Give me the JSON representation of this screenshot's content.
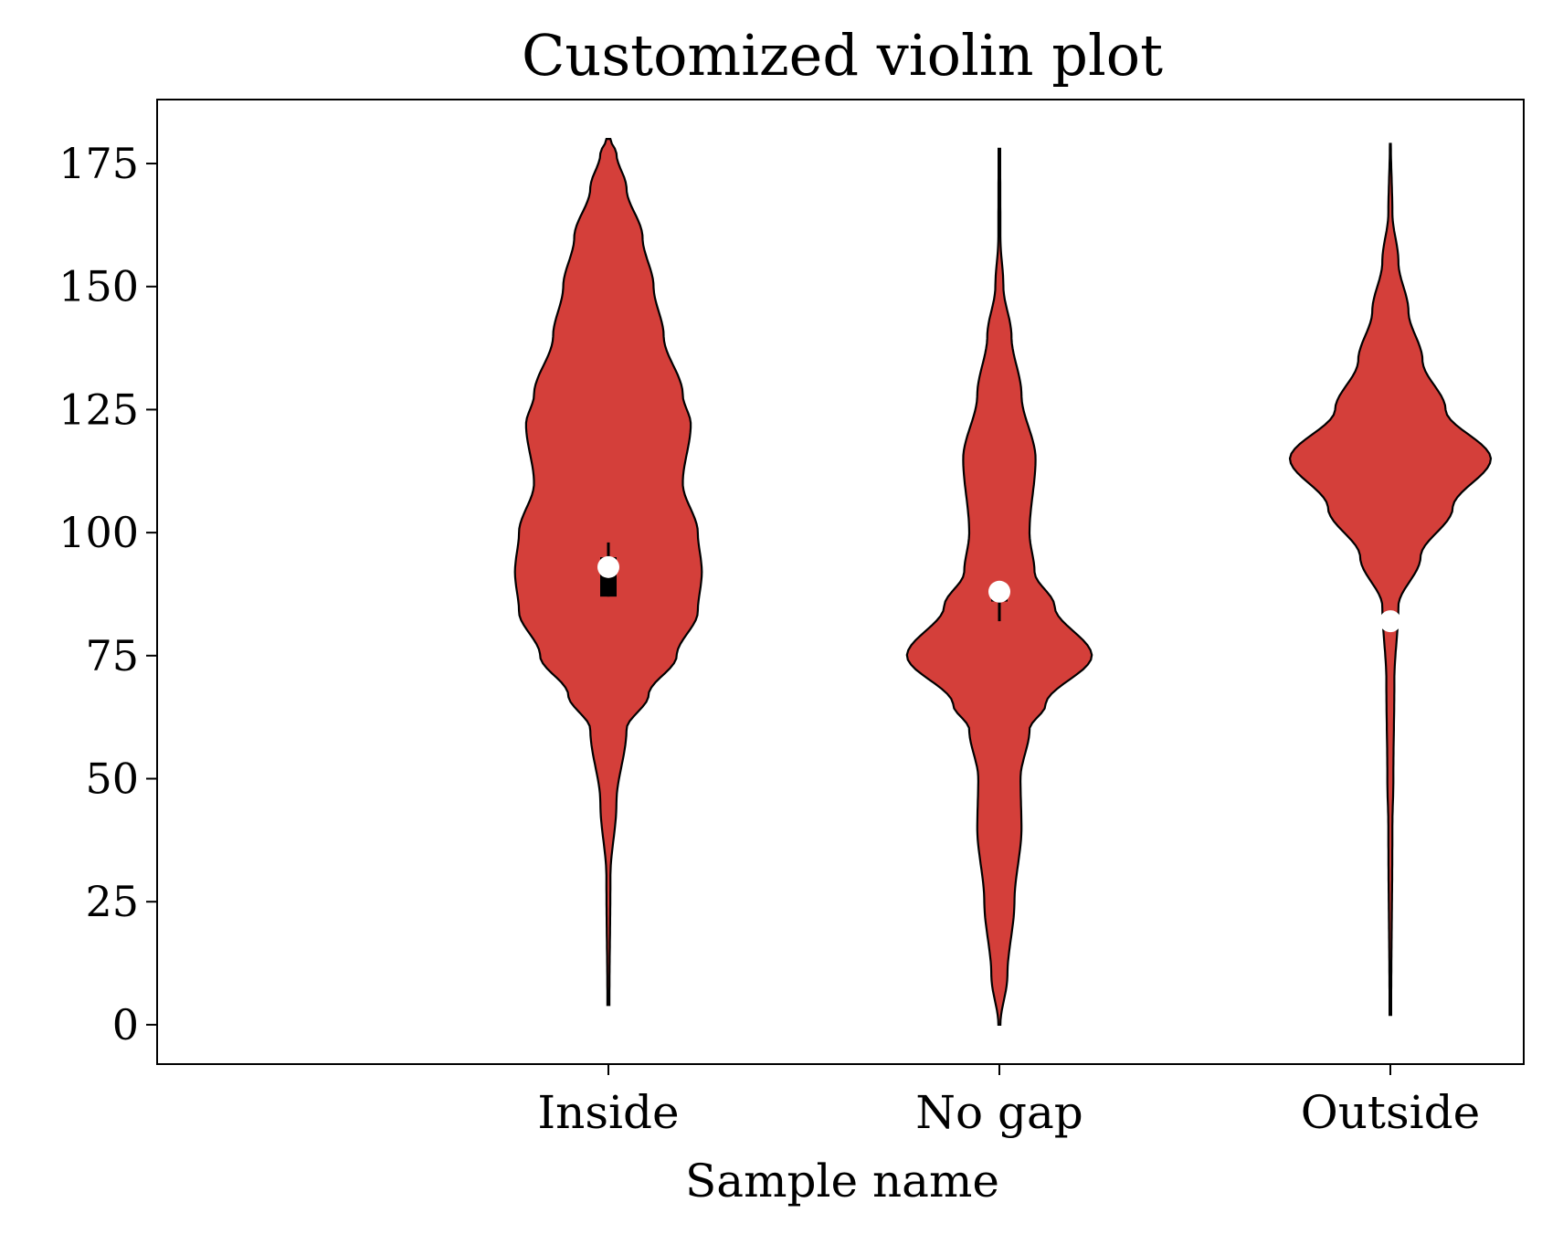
{
  "chart_data": {
    "type": "violin",
    "title": "Customized violin plot",
    "xlabel": "Sample name",
    "ylabel": "",
    "categories": [
      "Inside",
      "No gap",
      "Outside"
    ],
    "ylim": [
      -8,
      188
    ],
    "yticks": [
      0,
      25,
      50,
      75,
      100,
      125,
      150,
      175
    ],
    "ytick_labels": [
      "0",
      "25",
      "50",
      "75",
      "100",
      "125",
      "150",
      "175"
    ],
    "grid": false,
    "colors": {
      "fill": "#d43f3a",
      "edge": "#000000",
      "median": "#ffffff",
      "whisker": "#000000"
    },
    "violins": [
      {
        "name": "Inside",
        "min": 4,
        "max": 180,
        "median": 93,
        "q1": 87,
        "q3": 95,
        "whisker_low": 87,
        "whisker_high": 98,
        "density": [
          [
            4,
            0.01
          ],
          [
            30,
            0.02
          ],
          [
            45,
            0.08
          ],
          [
            60,
            0.18
          ],
          [
            67,
            0.4
          ],
          [
            75,
            0.68
          ],
          [
            84,
            0.89
          ],
          [
            92,
            0.93
          ],
          [
            100,
            0.89
          ],
          [
            110,
            0.74
          ],
          [
            122,
            0.82
          ],
          [
            128,
            0.74
          ],
          [
            140,
            0.55
          ],
          [
            150,
            0.45
          ],
          [
            160,
            0.34
          ],
          [
            170,
            0.18
          ],
          [
            177,
            0.08
          ],
          [
            180,
            0.02
          ]
        ]
      },
      {
        "name": "No gap",
        "min": 0,
        "max": 178,
        "median": 88,
        "q1": 86,
        "q3": 88,
        "whisker_low": 82,
        "whisker_high": 89,
        "density": [
          [
            0,
            0.01
          ],
          [
            10,
            0.08
          ],
          [
            25,
            0.15
          ],
          [
            40,
            0.22
          ],
          [
            50,
            0.21
          ],
          [
            60,
            0.3
          ],
          [
            65,
            0.46
          ],
          [
            75,
            0.92
          ],
          [
            85,
            0.55
          ],
          [
            92,
            0.35
          ],
          [
            100,
            0.3
          ],
          [
            115,
            0.36
          ],
          [
            128,
            0.22
          ],
          [
            140,
            0.12
          ],
          [
            150,
            0.04
          ],
          [
            160,
            0.01
          ],
          [
            178,
            0.008
          ]
        ]
      },
      {
        "name": "Outside",
        "min": 2,
        "max": 179,
        "median": 82,
        "q1": 82,
        "q3": 82,
        "whisker_low": 82,
        "whisker_high": 82,
        "density": [
          [
            2,
            0.008
          ],
          [
            40,
            0.02
          ],
          [
            50,
            0.03
          ],
          [
            70,
            0.04
          ],
          [
            85,
            0.08
          ],
          [
            95,
            0.3
          ],
          [
            105,
            0.62
          ],
          [
            115,
            1.0
          ],
          [
            125,
            0.55
          ],
          [
            135,
            0.32
          ],
          [
            145,
            0.18
          ],
          [
            155,
            0.08
          ],
          [
            165,
            0.02
          ],
          [
            179,
            0.005
          ]
        ]
      }
    ]
  }
}
